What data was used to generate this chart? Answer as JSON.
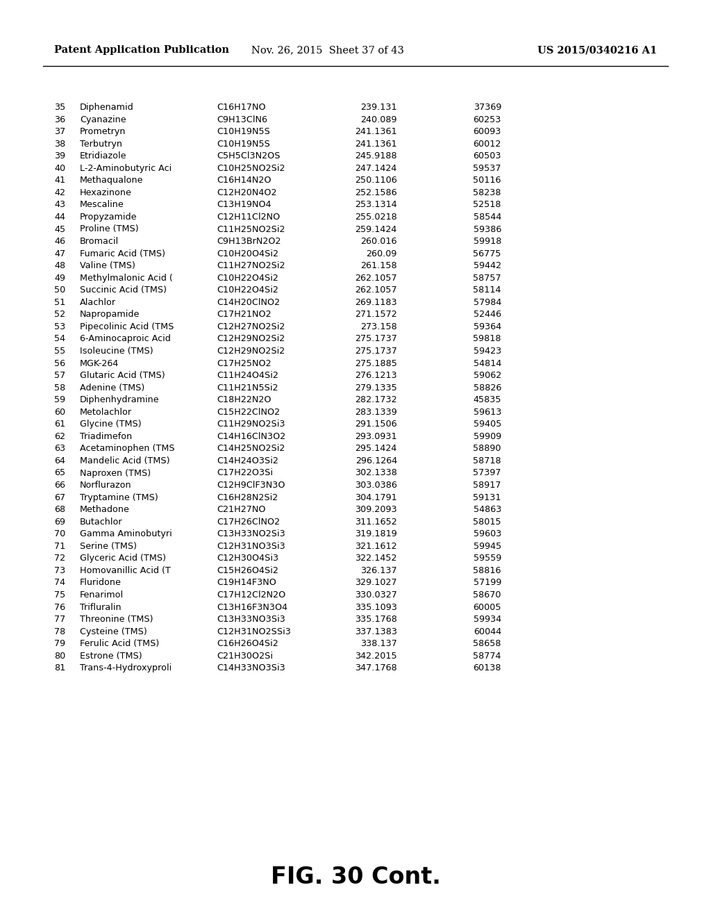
{
  "header_left": "Patent Application Publication",
  "header_mid": "Nov. 26, 2015  Sheet 37 of 43",
  "header_right": "US 2015/0340216 A1",
  "footer": "FIG. 30 Cont.",
  "rows": [
    [
      "35",
      "Diphenamid",
      "C16H17NO",
      "239.131",
      "37369"
    ],
    [
      "36",
      "Cyanazine",
      "C9H13ClN6",
      "240.089",
      "60253"
    ],
    [
      "37",
      "Prometryn",
      "C10H19N5S",
      "241.1361",
      "60093"
    ],
    [
      "38",
      "Terbutryn",
      "C10H19N5S",
      "241.1361",
      "60012"
    ],
    [
      "39",
      "Etridiazole",
      "C5H5Cl3N2OS",
      "245.9188",
      "60503"
    ],
    [
      "40",
      "L-2-Aminobutyric Aci·C10H25NO2Si2",
      "247.1424",
      "59537"
    ],
    [
      "41",
      "Methaqualone",
      "C16H14N2O",
      "250.1106",
      "50116"
    ],
    [
      "42",
      "Hexazinone",
      "C12H20N4O2",
      "252.1586",
      "58238"
    ],
    [
      "43",
      "Mescaline",
      "C13H19NO4",
      "253.1314",
      "52518"
    ],
    [
      "44",
      "Propyzamide",
      "C12H11Cl2NO",
      "255.0218",
      "58544"
    ],
    [
      "45",
      "Proline (TMS)",
      "C11H25NO2Si2",
      "259.1424",
      "59386"
    ],
    [
      "46",
      "Bromacil",
      "C9H13BrN2O2",
      "260.016",
      "59918"
    ],
    [
      "47",
      "Fumaric Acid (TMS)",
      "C10H20O4Si2",
      "260.09",
      "56775"
    ],
    [
      "48",
      "Valine (TMS)",
      "C11H27NO2Si2",
      "261.158",
      "59442"
    ],
    [
      "49",
      "Methylmalonic Acid (·C10H22O4Si2",
      "262.1057",
      "58757"
    ],
    [
      "50",
      "Succinic Acid (TMS)",
      "C10H22O4Si2",
      "262.1057",
      "58114"
    ],
    [
      "51",
      "Alachlor",
      "C14H20ClNO2",
      "269.1183",
      "57984"
    ],
    [
      "52",
      "Napropamide",
      "C17H21NO2",
      "271.1572",
      "52446"
    ],
    [
      "53",
      "Pipecolinic Acid (TMS·C12H27NO2Si2",
      "273.158",
      "59364"
    ],
    [
      "54",
      "6-Aminocaproic Acid ·C12H29NO2Si2",
      "275.1737",
      "59818"
    ],
    [
      "55",
      "Isoleucine (TMS)",
      "C12H29NO2Si2",
      "275.1737",
      "59423"
    ],
    [
      "56",
      "MGK-264",
      "C17H25NO2",
      "275.1885",
      "54814"
    ],
    [
      "57",
      "Glutaric Acid (TMS)",
      "C11H24O4Si2",
      "276.1213",
      "59062"
    ],
    [
      "58",
      "Adenine (TMS)",
      "C11H21N5Si2",
      "279.1335",
      "58826"
    ],
    [
      "59",
      "Diphenhydramine",
      "C18H22N2O",
      "282.1732",
      "45835"
    ],
    [
      "60",
      "Metolachlor",
      "C15H22ClNO2",
      "283.1339",
      "59613"
    ],
    [
      "61",
      "Glycine (TMS)",
      "C11H29NO2Si3",
      "291.1506",
      "59405"
    ],
    [
      "62",
      "Triadimefon",
      "C14H16ClN3O2",
      "293.0931",
      "59909"
    ],
    [
      "63",
      "Acetaminophen (TMS·C14H25NO2Si2",
      "295.1424",
      "58890"
    ],
    [
      "64",
      "Mandelic Acid (TMS)",
      "C14H24O3Si2",
      "296.1264",
      "58718"
    ],
    [
      "65",
      "Naproxen (TMS)",
      "C17H22O3Si",
      "302.1338",
      "57397"
    ],
    [
      "66",
      "Norflurazon",
      "C12H9ClF3N3O",
      "303.0386",
      "58917"
    ],
    [
      "67",
      "Tryptamine (TMS)",
      "C16H28N2Si2",
      "304.1791",
      "59131"
    ],
    [
      "68",
      "Methadone",
      "C21H27NO",
      "309.2093",
      "54863"
    ],
    [
      "69",
      "Butachlor",
      "C17H26ClNO2",
      "311.1652",
      "58015"
    ],
    [
      "70",
      "Gamma Aminobutyri·C13H33NO2Si3",
      "319.1819",
      "59603"
    ],
    [
      "71",
      "Serine (TMS)",
      "C12H31NO3Si3",
      "321.1612",
      "59945"
    ],
    [
      "72",
      "Glyceric Acid (TMS)",
      "C12H30O4Si3",
      "322.1452",
      "59559"
    ],
    [
      "73",
      "Homovanillic Acid (T·C15H26O4Si2",
      "326.137",
      "58816"
    ],
    [
      "74",
      "Fluridone",
      "C19H14F3NO",
      "329.1027",
      "57199"
    ],
    [
      "75",
      "Fenarimol",
      "C17H12Cl2N2O",
      "330.0327",
      "58670"
    ],
    [
      "76",
      "Trifluralin",
      "C13H16F3N3O4",
      "335.1093",
      "60005"
    ],
    [
      "77",
      "Threonine (TMS)",
      "C13H33NO3Si3",
      "335.1768",
      "59934"
    ],
    [
      "78",
      "Cysteine (TMS)",
      "C12H31NO2SSi3",
      "337.1383",
      "60044"
    ],
    [
      "79",
      "Ferulic Acid (TMS)",
      "C16H26O4Si2",
      "338.137",
      "58658"
    ],
    [
      "80",
      "Estrone (TMS)",
      "C21H30O2Si",
      "342.2015",
      "58774"
    ],
    [
      "81",
      "Trans-4-Hydroxyproli·C14H33NO3Si3",
      "347.1768",
      "60138"
    ]
  ],
  "background_color": "#ffffff",
  "text_color": "#000000",
  "header_fontsize": 10.5,
  "row_fontsize": 9.2,
  "footer_fontsize": 24
}
